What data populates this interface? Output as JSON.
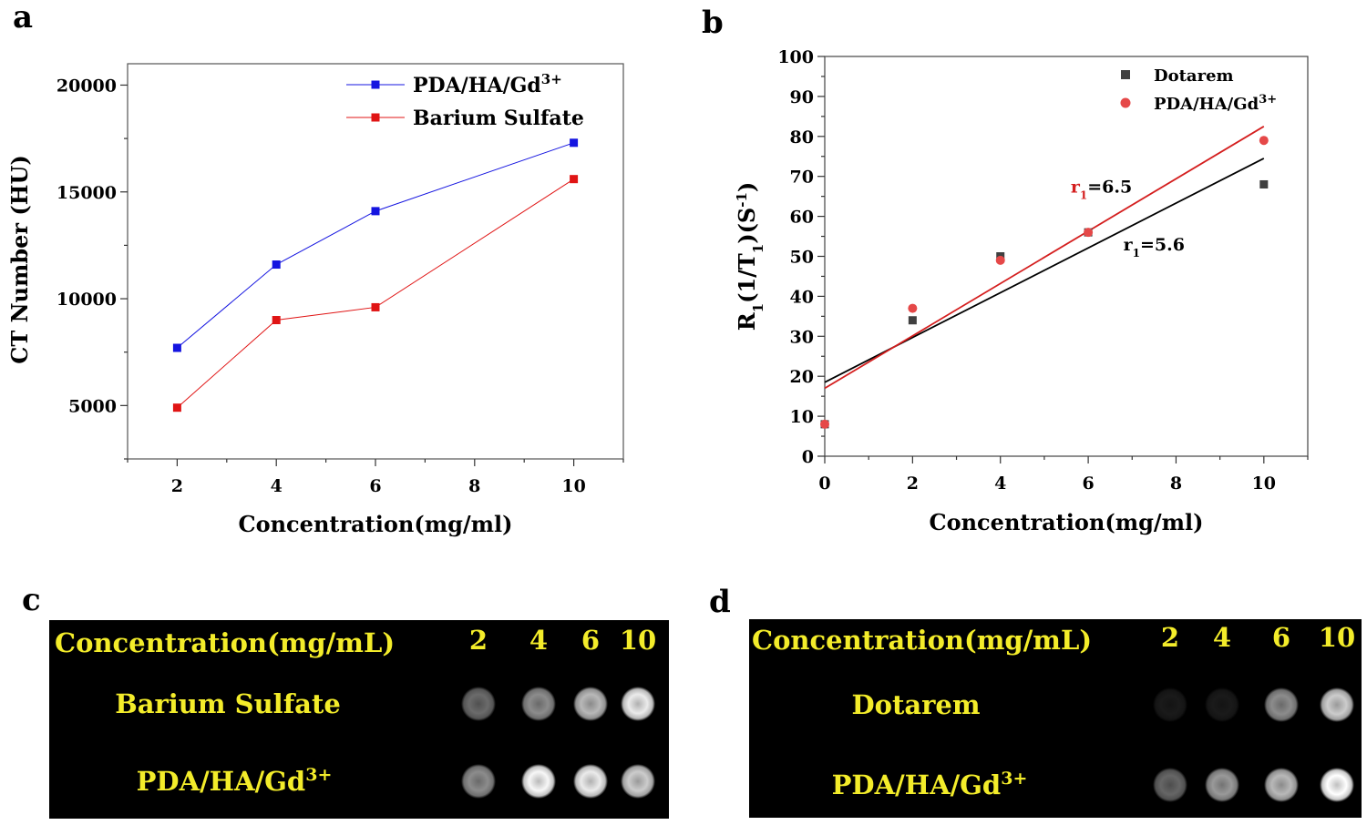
{
  "panels": {
    "a": "a",
    "b": "b",
    "c": "c",
    "d": "d"
  },
  "chart_data": [
    {
      "type": "line",
      "panel": "a",
      "xlabel": "Concentration(mg/ml)",
      "ylabel": "CT Number (HU)",
      "xlim": [
        1,
        11
      ],
      "ylim": [
        2500,
        21000
      ],
      "xticks": [
        2,
        4,
        6,
        8,
        10
      ],
      "yticks": [
        5000,
        10000,
        15000,
        20000
      ],
      "legend_position": "top-right",
      "series": [
        {
          "name": "PDA/HA/Gd",
          "name_sup": "3+",
          "color": "#1414e0",
          "x": [
            2,
            4,
            6,
            10
          ],
          "values": [
            7700,
            11600,
            14100,
            17300
          ]
        },
        {
          "name": "Barium Sulfate",
          "name_sup": "",
          "color": "#e01414",
          "x": [
            2,
            4,
            6,
            10
          ],
          "values": [
            4900,
            9000,
            9600,
            15600
          ]
        }
      ]
    },
    {
      "type": "scatter",
      "panel": "b",
      "xlabel": "Concentration(mg/ml)",
      "ylabel": {
        "main": "R",
        "sub1": "1",
        "mid": "(1/T",
        "sub2": "1",
        "mid2": ")(S",
        "sup": "-1",
        "end": ")"
      },
      "xlim": [
        0,
        11
      ],
      "ylim": [
        0,
        100
      ],
      "xticks": [
        0,
        2,
        4,
        6,
        8,
        10
      ],
      "yticks": [
        0,
        10,
        20,
        30,
        40,
        50,
        60,
        70,
        80,
        90,
        100
      ],
      "legend_position": "top-right",
      "series": [
        {
          "name": "Dotarem",
          "name_sup": "",
          "color": "#404040",
          "marker": "square",
          "x": [
            0,
            2,
            4,
            6,
            10
          ],
          "values": [
            8,
            34,
            50,
            56,
            68
          ],
          "fit": {
            "x0": 0,
            "y0": 18.5,
            "x1": 10,
            "y1": 74.5,
            "color": "#000000"
          }
        },
        {
          "name": "PDA/HA/Gd",
          "name_sup": "3+",
          "color": "#e54848",
          "marker": "circle",
          "x": [
            0,
            2,
            4,
            6,
            10
          ],
          "values": [
            8,
            37,
            49,
            56,
            79
          ],
          "fit": {
            "x0": 0,
            "y0": 17,
            "x1": 10,
            "y1": 82.5,
            "color": "#d41e1e"
          }
        }
      ],
      "annotations": [
        {
          "main": "r",
          "sub": "1",
          "rest": "=6.5",
          "color": "#d41e1e",
          "x": 5.6,
          "y": 66
        },
        {
          "main": "r",
          "sub": "1",
          "rest": "=5.6",
          "color": "#000000",
          "x": 6.8,
          "y": 51.5
        }
      ]
    }
  ],
  "image_c": {
    "header": "Concentration(mg/mL)",
    "concentrations": [
      "2",
      "4",
      "6",
      "10"
    ],
    "rows": [
      {
        "label": "Barium Sulfate",
        "label_sup": "",
        "intensities": [
          0.42,
          0.55,
          0.72,
          0.92
        ]
      },
      {
        "label": "PDA/HA/Gd",
        "label_sup": "3+",
        "intensities": [
          0.55,
          0.97,
          0.92,
          0.8
        ]
      }
    ]
  },
  "image_d": {
    "header": "Concentration(mg/mL)",
    "concentrations": [
      "2",
      "4",
      "6",
      "10"
    ],
    "rows": [
      {
        "label": "Dotarem",
        "label_sup": "",
        "intensities": [
          0.1,
          0.1,
          0.55,
          0.8
        ]
      },
      {
        "label": "PDA/HA/Gd",
        "label_sup": "3+",
        "intensities": [
          0.4,
          0.6,
          0.72,
          1.0
        ]
      }
    ]
  }
}
